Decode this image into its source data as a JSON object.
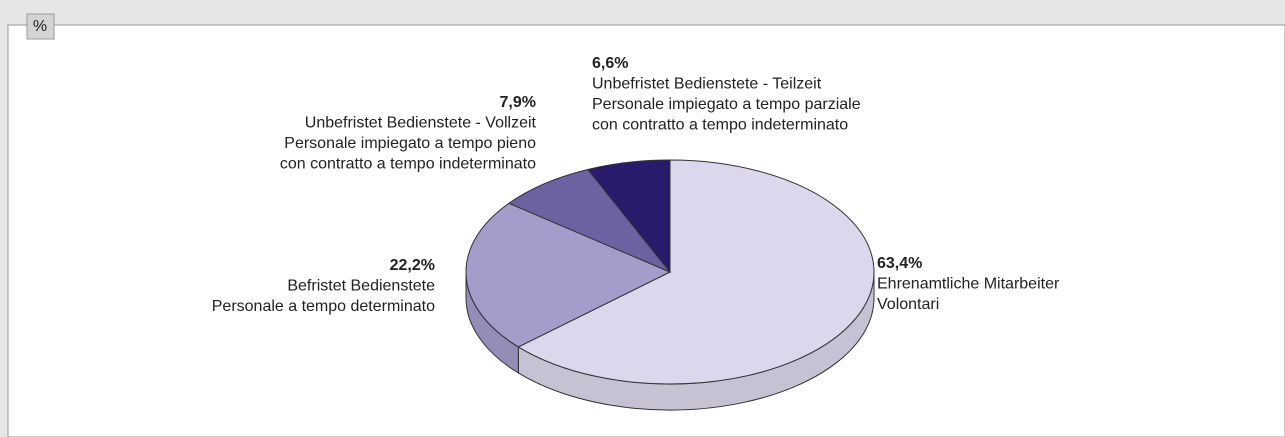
{
  "chart_data": {
    "type": "pie",
    "title": "%",
    "categories": [
      [
        "Ehrenamtliche Mitarbeiter",
        "Volontari"
      ],
      [
        "Befristet Bedienstete",
        "Personale a tempo determinato"
      ],
      [
        "Unbefristet Bedienstete - Vollzeit",
        "Personale impiegato a tempo pieno",
        "con contratto a tempo indeterminato"
      ],
      [
        "Unbefristet Bedienstete - Teilzeit",
        "Personale impiegato a tempo parziale",
        "con contratto a tempo indeterminato"
      ]
    ],
    "values": [
      63.4,
      22.2,
      7.9,
      6.6
    ],
    "value_labels": [
      "63,4%",
      "22,2%",
      "7,9%",
      "6,6%"
    ],
    "colors": [
      "#dcd7ec",
      "#a59ccb",
      "#6d61a1",
      "#2a1a6c"
    ]
  }
}
